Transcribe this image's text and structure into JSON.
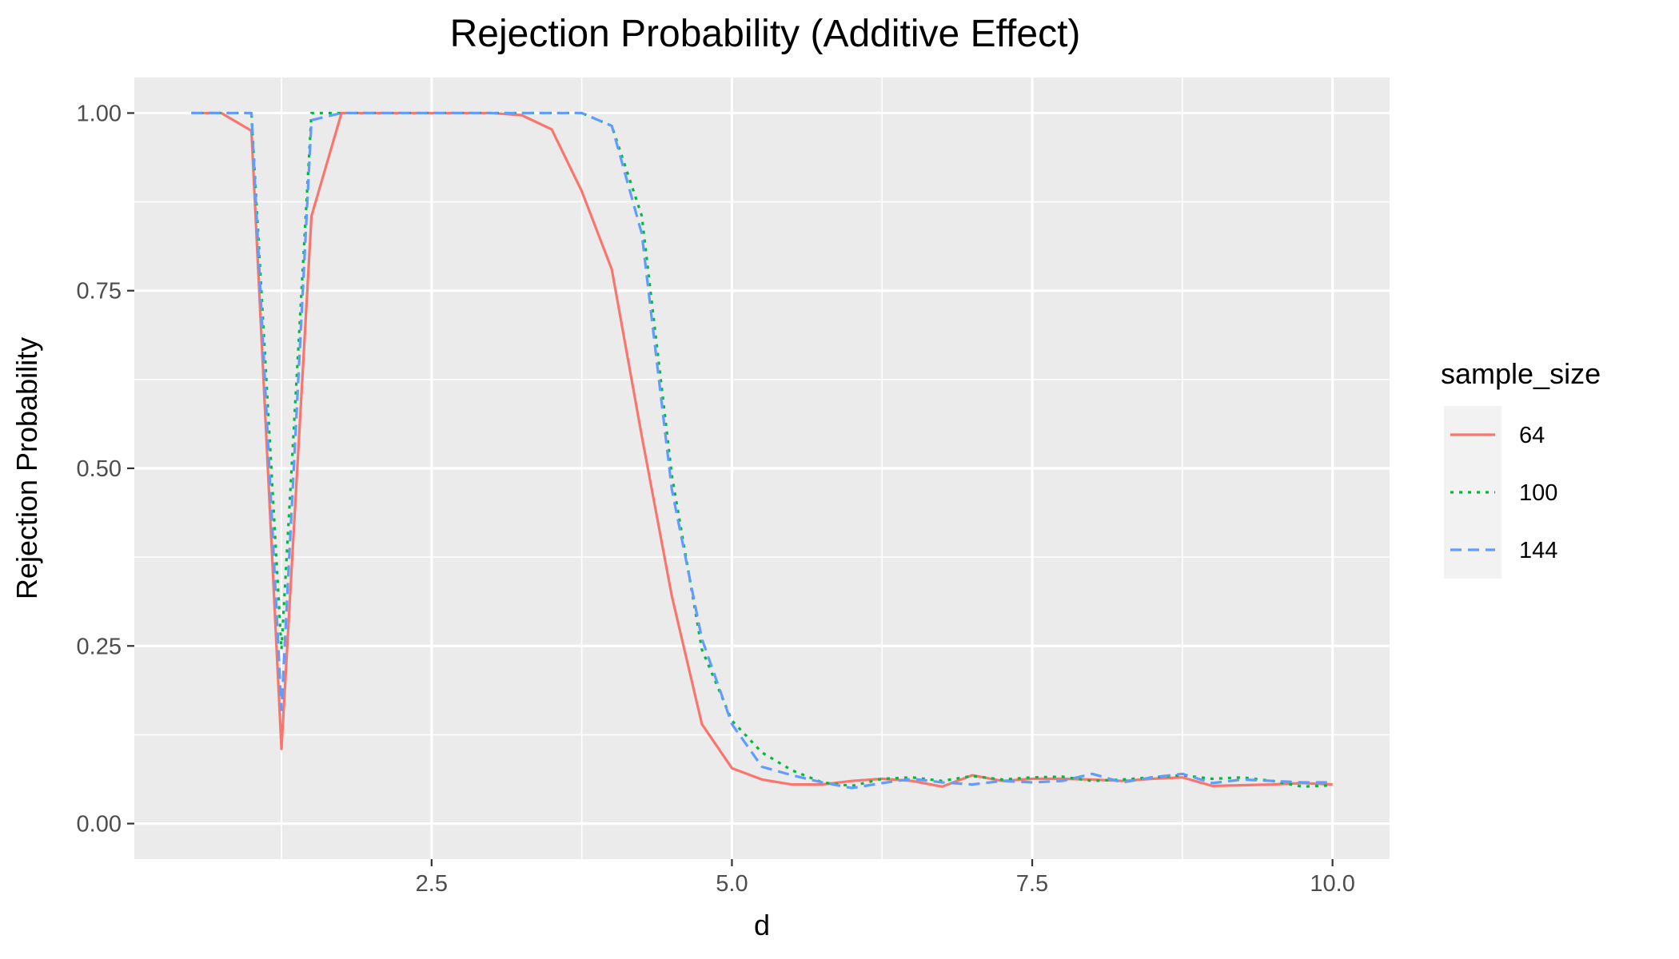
{
  "chart_data": {
    "type": "line",
    "title": "Rejection Probability (Additive Effect)",
    "xlabel": "d",
    "ylabel": "Rejection Probability",
    "xlim": [
      0.025,
      10.475
    ],
    "ylim": [
      -0.05,
      1.05
    ],
    "x_ticks": [
      2.5,
      5.0,
      7.5,
      10.0
    ],
    "x_tick_labels": [
      "2.5",
      "5.0",
      "7.5",
      "10.0"
    ],
    "y_ticks": [
      0.0,
      0.25,
      0.5,
      0.75,
      1.0
    ],
    "y_tick_labels": [
      "0.00",
      "0.25",
      "0.50",
      "0.75",
      "1.00"
    ],
    "grid": true,
    "panel_background": "#ebebeb",
    "legend": {
      "title": "sample_size",
      "position": "right"
    },
    "x": [
      0.5,
      0.75,
      1.0,
      1.25,
      1.5,
      1.75,
      2.0,
      2.25,
      2.5,
      2.75,
      3.0,
      3.25,
      3.5,
      3.75,
      4.0,
      4.25,
      4.5,
      4.75,
      5.0,
      5.25,
      5.5,
      5.75,
      6.0,
      6.25,
      6.5,
      6.75,
      7.0,
      7.25,
      7.5,
      7.75,
      8.0,
      8.25,
      8.5,
      8.75,
      9.0,
      9.25,
      9.5,
      9.75,
      10.0
    ],
    "series": [
      {
        "name": "64",
        "color": "#F8766D",
        "dash": "solid",
        "values": [
          1.0,
          1.0,
          0.975,
          0.105,
          0.855,
          1.0,
          1.0,
          1.0,
          1.0,
          1.0,
          1.0,
          0.997,
          0.977,
          0.89,
          0.78,
          0.545,
          0.32,
          0.14,
          0.078,
          0.062,
          0.055,
          0.055,
          0.06,
          0.063,
          0.06,
          0.052,
          0.068,
          0.06,
          0.063,
          0.063,
          0.062,
          0.06,
          0.063,
          0.065,
          0.053,
          0.054,
          0.055,
          0.057,
          0.055
        ]
      },
      {
        "name": "100",
        "color": "#00BA38",
        "dash": "dotted",
        "values": [
          1.0,
          1.0,
          1.0,
          0.245,
          1.0,
          1.0,
          1.0,
          1.0,
          1.0,
          1.0,
          1.0,
          1.0,
          1.0,
          1.0,
          0.982,
          0.855,
          0.49,
          0.245,
          0.145,
          0.1,
          0.075,
          0.058,
          0.053,
          0.063,
          0.065,
          0.06,
          0.067,
          0.062,
          0.065,
          0.066,
          0.06,
          0.062,
          0.065,
          0.068,
          0.063,
          0.065,
          0.06,
          0.052,
          0.054
        ]
      },
      {
        "name": "144",
        "color": "#619CFF",
        "dash": "dashed",
        "values": [
          1.0,
          1.0,
          1.0,
          0.16,
          0.99,
          1.0,
          1.0,
          1.0,
          1.0,
          1.0,
          1.0,
          1.0,
          1.0,
          1.0,
          0.982,
          0.83,
          0.47,
          0.26,
          0.14,
          0.08,
          0.068,
          0.058,
          0.05,
          0.057,
          0.063,
          0.058,
          0.055,
          0.06,
          0.058,
          0.06,
          0.07,
          0.058,
          0.065,
          0.07,
          0.057,
          0.062,
          0.06,
          0.058,
          0.058
        ]
      }
    ]
  }
}
